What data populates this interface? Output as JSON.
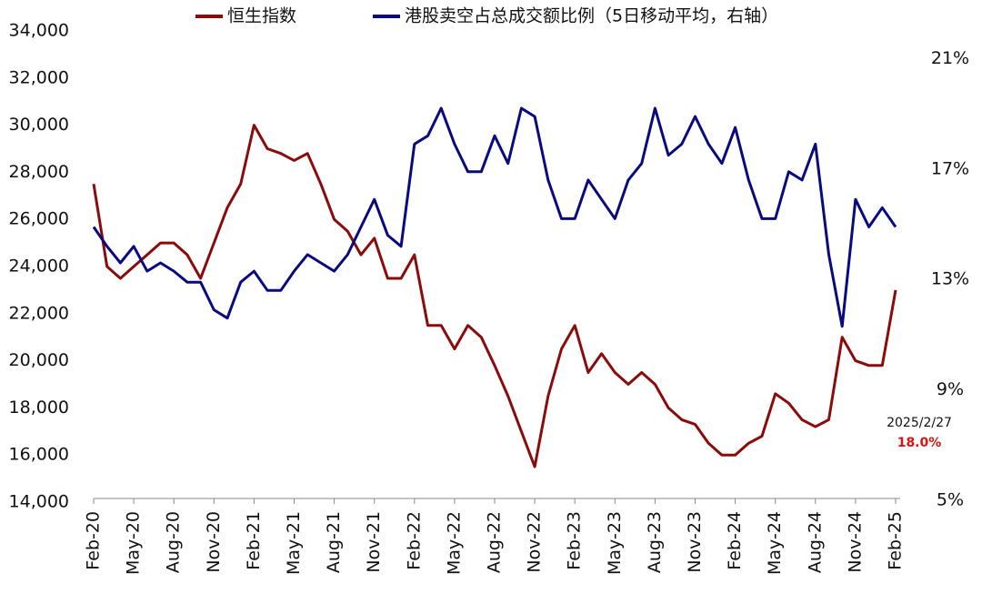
{
  "chart_data": {
    "type": "line",
    "categories": [
      "Feb-20",
      null,
      null,
      "May-20",
      null,
      null,
      "Aug-20",
      null,
      null,
      "Nov-20",
      null,
      null,
      "Feb-21",
      null,
      null,
      "May-21",
      null,
      null,
      "Aug-21",
      null,
      null,
      "Nov-21",
      null,
      null,
      "Feb-22",
      null,
      null,
      "May-22",
      null,
      null,
      "Aug-22",
      null,
      null,
      "Nov-22",
      null,
      null,
      "Feb-23",
      null,
      null,
      "May-23",
      null,
      null,
      "Aug-23",
      null,
      null,
      "Nov-23",
      null,
      null,
      "Feb-24",
      null,
      null,
      "May-24",
      null,
      null,
      "Aug-24",
      null,
      null,
      "Nov-24",
      null,
      null,
      "Feb-25"
    ],
    "series": [
      {
        "name": "恒生指数",
        "color": "#8b0a0a",
        "axis": "y",
        "values": [
          27500,
          24000,
          23500,
          24000,
          24500,
          25000,
          25000,
          24500,
          23500,
          25000,
          26500,
          27500,
          30000,
          29000,
          28800,
          28500,
          28800,
          27500,
          26000,
          25500,
          24500,
          25200,
          23500,
          23500,
          24500,
          21500,
          21500,
          20500,
          21500,
          21000,
          19800,
          18500,
          17000,
          15500,
          18500,
          20500,
          21500,
          19500,
          20300,
          19500,
          19000,
          19500,
          19000,
          18000,
          17500,
          17300,
          16500,
          16000,
          16000,
          16500,
          16800,
          18600,
          18200,
          17500,
          17200,
          17500,
          21000,
          20000,
          19800,
          19800,
          23000
        ]
      },
      {
        "name": "港股卖空占总成交额比例（5日移动平均，右轴）",
        "color": "#0a0a80",
        "axis": "y2",
        "values": [
          14.9,
          14.2,
          13.6,
          14.2,
          13.3,
          13.6,
          13.3,
          12.9,
          12.9,
          11.9,
          11.6,
          12.9,
          13.3,
          12.6,
          12.6,
          13.3,
          13.9,
          13.6,
          13.3,
          13.9,
          14.9,
          15.9,
          14.6,
          14.2,
          17.9,
          18.2,
          19.2,
          17.9,
          16.9,
          16.9,
          18.2,
          17.2,
          19.2,
          18.9,
          16.6,
          15.2,
          15.2,
          16.6,
          15.9,
          15.2,
          16.6,
          17.2,
          19.2,
          17.5,
          17.9,
          18.9,
          17.9,
          17.2,
          18.5,
          16.6,
          15.2,
          15.2,
          16.9,
          16.6,
          17.9,
          13.9,
          11.3,
          15.9,
          14.9,
          15.6,
          14.9
        ]
      }
    ],
    "ylim": [
      14000,
      34000
    ],
    "yticks": [
      {
        "value": 14000,
        "label": "14,000"
      },
      {
        "value": 16000,
        "label": "16,000"
      },
      {
        "value": 18000,
        "label": "18,000"
      },
      {
        "value": 20000,
        "label": "20,000"
      },
      {
        "value": 22000,
        "label": "22,000"
      },
      {
        "value": 24000,
        "label": "24,000"
      },
      {
        "value": 26000,
        "label": "26,000"
      },
      {
        "value": 28000,
        "label": "28,000"
      },
      {
        "value": 30000,
        "label": "30,000"
      },
      {
        "value": 32000,
        "label": "32,000"
      },
      {
        "value": 34000,
        "label": "34,000"
      }
    ],
    "y2lim": [
      5,
      22
    ],
    "y2ticks": [
      {
        "value": 5,
        "label": "5%"
      },
      {
        "value": 9,
        "label": "9%"
      },
      {
        "value": 13,
        "label": "13%"
      },
      {
        "value": 17,
        "label": "17%"
      },
      {
        "value": 21,
        "label": "21%"
      }
    ],
    "annotations": [
      "2025/2/27",
      "18.0%"
    ],
    "annotation_color": "#e01010",
    "legend": "top"
  }
}
